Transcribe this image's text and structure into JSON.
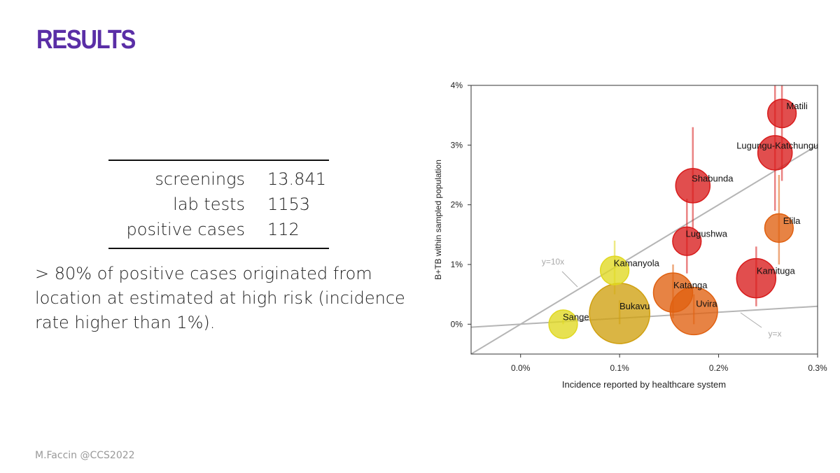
{
  "slide": {
    "title": "RESULTS",
    "title_color": "#5a2ea6",
    "footer": "M.Faccin @CCS2022"
  },
  "stats": {
    "rows": [
      {
        "label": "screenings",
        "value": "13.841"
      },
      {
        "label": "lab tests",
        "value": "1153"
      },
      {
        "label": "positive cases",
        "value": "112"
      }
    ]
  },
  "summary": {
    "text": "> 80% of positive cases originated from location at estimated at high risk (incidence rate higher than 1%)."
  },
  "chart_data": {
    "type": "scatter",
    "title": "",
    "xlabel": "Incidence reported by healthcare system",
    "ylabel": "B+TB within sampled population",
    "xlim": [
      -0.05,
      0.3
    ],
    "ylim": [
      -0.5,
      4
    ],
    "xticks": [
      0,
      0.1,
      0.2,
      0.3
    ],
    "xtick_labels": [
      "0.0%",
      "0.1%",
      "0.2%",
      "0.3%"
    ],
    "yticks": [
      0,
      1,
      2,
      3,
      4
    ],
    "ytick_labels": [
      "0%",
      "1%",
      "2%",
      "3%",
      "4%"
    ],
    "grid": false,
    "reference_lines": [
      {
        "label": "y=10x",
        "slope": 10
      },
      {
        "label": "y=x",
        "slope": 1
      }
    ],
    "points": [
      {
        "name": "Matili",
        "x": 0.264,
        "y": 3.53,
        "err": [
          2.4,
          4.0
        ],
        "size": 2,
        "color": "#d81c1c"
      },
      {
        "name": "Lugungu-Katchungu",
        "x": 0.257,
        "y": 2.87,
        "err": [
          1.9,
          4.0
        ],
        "size": 3,
        "color": "#d81c1c"
      },
      {
        "name": "Shabunda",
        "x": 0.174,
        "y": 2.32,
        "err": [
          1.6,
          3.3
        ],
        "size": 3,
        "color": "#d81c1c"
      },
      {
        "name": "Elila",
        "x": 0.261,
        "y": 1.61,
        "err": [
          1.0,
          2.5
        ],
        "size": 2,
        "color": "#e06010"
      },
      {
        "name": "Lugushwa",
        "x": 0.168,
        "y": 1.39,
        "err": [
          0.85,
          2.1
        ],
        "size": 2,
        "color": "#d81c1c"
      },
      {
        "name": "Kamanyola",
        "x": 0.095,
        "y": 0.9,
        "err": [
          0.5,
          1.4
        ],
        "size": 2,
        "color": "#e0d820"
      },
      {
        "name": "Kamituga",
        "x": 0.238,
        "y": 0.77,
        "err": [
          0.3,
          1.3
        ],
        "size": 4,
        "color": "#d81c1c"
      },
      {
        "name": "Katanga",
        "x": 0.154,
        "y": 0.53,
        "err": [
          0.1,
          1.0
        ],
        "size": 4,
        "color": "#e06010"
      },
      {
        "name": "Uvira",
        "x": 0.175,
        "y": 0.22,
        "err": [
          0.0,
          0.5
        ],
        "size": 6,
        "color": "#e06010"
      },
      {
        "name": "Bukavu",
        "x": 0.1,
        "y": 0.18,
        "err": [
          0.0,
          0.4
        ],
        "size": 10,
        "color": "#d0a010"
      },
      {
        "name": "Sange",
        "x": 0.043,
        "y": 0.0,
        "err": [
          0.0,
          0.1
        ],
        "size": 2,
        "color": "#e0d820"
      }
    ]
  }
}
